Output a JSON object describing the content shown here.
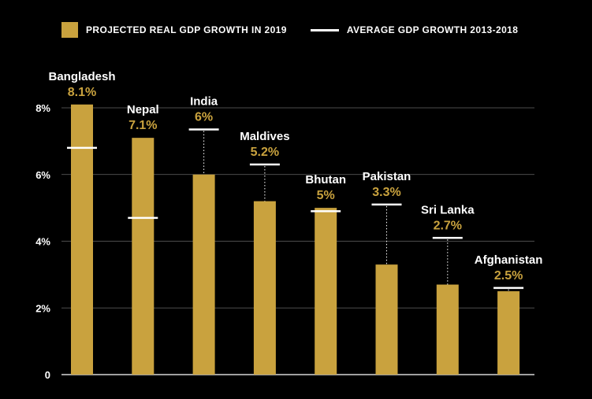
{
  "legend": {
    "bar_label": "PROJECTED REAL GDP GROWTH IN 2019",
    "line_label": "AVERAGE GDP GROWTH 2013-2018"
  },
  "colors": {
    "bar": "#c9a23e",
    "value_text": "#c9a23e",
    "average_line": "#ffffff",
    "background": "#000000",
    "grid": "#666666"
  },
  "chart_data": {
    "type": "bar",
    "categories": [
      "Bangladesh",
      "Nepal",
      "India",
      "Maldives",
      "Bhutan",
      "Pakistan",
      "Sri Lanka",
      "Afghanistan"
    ],
    "series": [
      {
        "name": "PROJECTED REAL GDP GROWTH IN 2019",
        "values": [
          8.1,
          7.1,
          6.0,
          5.2,
          5.0,
          3.3,
          2.7,
          2.5
        ],
        "value_labels": [
          "8.1%",
          "7.1%",
          "6%",
          "5.2%",
          "5%",
          "3.3%",
          "2.7%",
          "2.5%"
        ]
      },
      {
        "name": "AVERAGE GDP GROWTH 2013-2018",
        "type": "marker",
        "values": [
          6.8,
          4.7,
          7.35,
          6.3,
          4.9,
          5.1,
          4.1,
          2.6
        ]
      }
    ],
    "ylim": [
      0,
      8
    ],
    "yticks": [
      0,
      2,
      4,
      6,
      8
    ],
    "ytick_labels": [
      "0",
      "2%",
      "4%",
      "6%",
      "8%"
    ],
    "grid": true,
    "legend_position": "top"
  }
}
